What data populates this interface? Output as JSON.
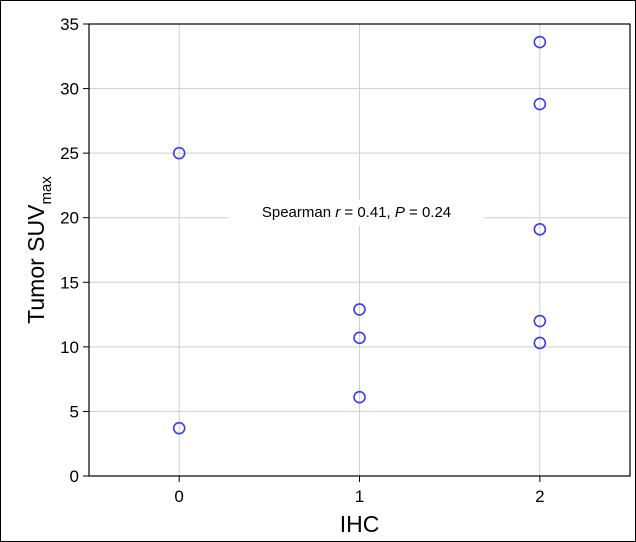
{
  "chart_data": {
    "type": "scatter",
    "title": "",
    "xlabel": "IHC",
    "ylabel": {
      "main": "Tumor SUV",
      "subscript": "max"
    },
    "xlim": [
      -0.5,
      2.5
    ],
    "ylim": [
      0,
      35
    ],
    "x_ticks": [
      0,
      1,
      2
    ],
    "y_ticks": [
      0,
      5,
      10,
      15,
      20,
      25,
      30,
      35
    ],
    "grid": true,
    "legend": "none",
    "marker": "open-circle",
    "marker_color": "#3b3bf0",
    "annotation": {
      "prefix": "Spearman ",
      "r_symbol": "r",
      "r_text": " = 0.41, ",
      "p_symbol": "P",
      "p_text": " = 0.24"
    },
    "points": [
      {
        "x": 0,
        "y": 25.0
      },
      {
        "x": 0,
        "y": 3.7
      },
      {
        "x": 1,
        "y": 12.9
      },
      {
        "x": 1,
        "y": 10.7
      },
      {
        "x": 1,
        "y": 6.1
      },
      {
        "x": 2,
        "y": 33.6
      },
      {
        "x": 2,
        "y": 28.8
      },
      {
        "x": 2,
        "y": 19.1
      },
      {
        "x": 2,
        "y": 12.0
      },
      {
        "x": 2,
        "y": 10.3
      }
    ]
  }
}
